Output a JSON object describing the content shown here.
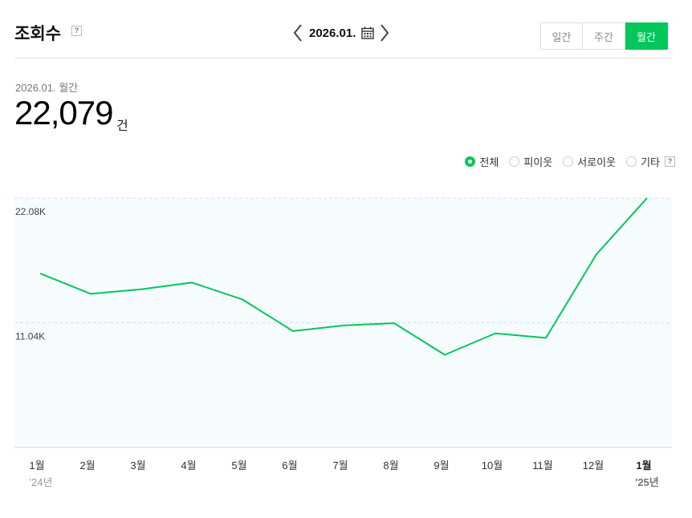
{
  "header": {
    "title": "조회수",
    "help": "?",
    "date": "2026.01.",
    "period_buttons": [
      {
        "label": "일간",
        "active": false
      },
      {
        "label": "주간",
        "active": false
      },
      {
        "label": "월간",
        "active": true
      }
    ]
  },
  "summary": {
    "period": "2026.01. 월간",
    "value": "22,079",
    "unit": "건"
  },
  "filters": {
    "options": [
      {
        "label": "전체",
        "selected": true
      },
      {
        "label": "피이웃",
        "selected": false
      },
      {
        "label": "서로이웃",
        "selected": false
      },
      {
        "label": "기타",
        "selected": false
      }
    ],
    "help": "?"
  },
  "colors": {
    "accent": "#03c75a",
    "plot_bg": "#f6fbfd"
  },
  "chart_data": {
    "type": "line",
    "categories": [
      "1월",
      "2월",
      "3월",
      "4월",
      "5월",
      "6월",
      "7월",
      "8월",
      "9월",
      "10월",
      "11월",
      "12월",
      "1월"
    ],
    "year_labels": [
      "'24년",
      "",
      "",
      "",
      "",
      "",
      "",
      "",
      "",
      "",
      "",
      "",
      "'25년"
    ],
    "series": [
      {
        "values": [
          15400,
          13600,
          14000,
          14600,
          13100,
          10300,
          10800,
          11000,
          8200,
          10100,
          9700,
          17100,
          22079
        ]
      }
    ],
    "yticks": [
      22080,
      11040
    ],
    "ytick_labels": [
      "22.08K",
      "11.04K"
    ],
    "ylim": [
      0,
      22079
    ],
    "grid": true
  }
}
